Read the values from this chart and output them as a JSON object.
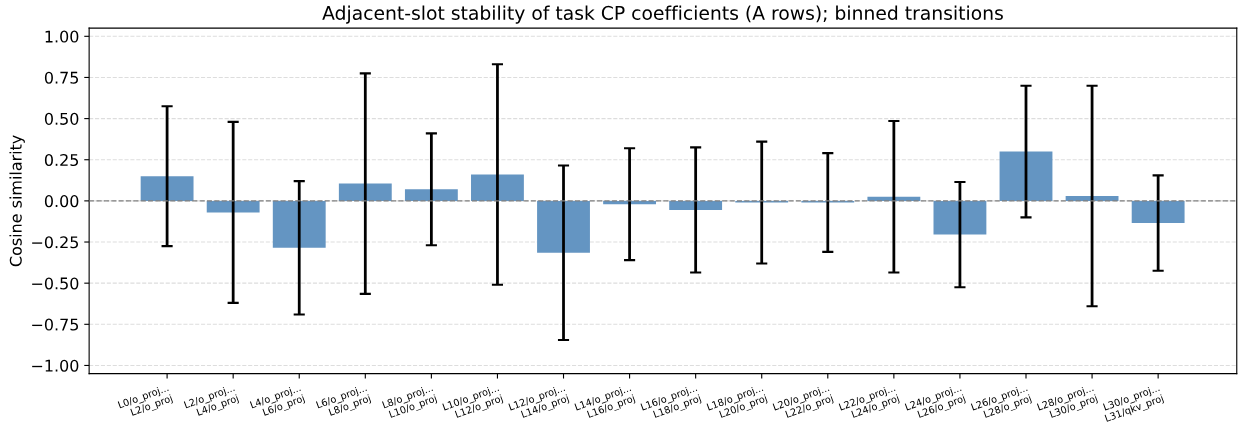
{
  "chart_data": {
    "type": "bar",
    "title": "Adjacent-slot stability of task CP coefficients (A rows); binned transitions",
    "ylabel": "Cosine similarity",
    "categories": [
      "L0/o_proj...\nL2/o_proj",
      "L2/o_proj...\nL4/o_proj",
      "L4/o_proj...\nL6/o_proj",
      "L6/o_proj...\nL8/o_proj",
      "L8/o_proj...\nL10/o_proj",
      "L10/o_proj...\nL12/o_proj",
      "L12/o_proj...\nL14/o_proj",
      "L14/o_proj...\nL16/o_proj",
      "L16/o_proj...\nL18/o_proj",
      "L18/o_proj...\nL20/o_proj",
      "L20/o_proj...\nL22/o_proj",
      "L22/o_proj...\nL24/o_proj",
      "L24/o_proj...\nL26/o_proj",
      "L26/o_proj...\nL28/o_proj",
      "L28/o_proj...\nL30/o_proj",
      "L30/o_proj...\nL31/qkv_proj"
    ],
    "values": [
      0.15,
      -0.07,
      -0.285,
      0.105,
      0.07,
      0.16,
      -0.315,
      -0.02,
      -0.055,
      -0.01,
      -0.01,
      0.025,
      -0.205,
      0.3,
      0.03,
      -0.135
    ],
    "errors": [
      0.425,
      0.55,
      0.405,
      0.67,
      0.34,
      0.67,
      0.53,
      0.34,
      0.38,
      0.37,
      0.3,
      0.46,
      0.32,
      0.4,
      0.67,
      0.29
    ],
    "color": "#6495c2",
    "ylim": [
      -1.05,
      1.05
    ],
    "yticks": [
      {
        "value": -1.0,
        "label": "−1.00"
      },
      {
        "value": -0.75,
        "label": "−0.75"
      },
      {
        "value": -0.5,
        "label": "−0.50"
      },
      {
        "value": -0.25,
        "label": "−0.25"
      },
      {
        "value": 0.0,
        "label": "0.00"
      },
      {
        "value": 0.25,
        "label": "0.25"
      },
      {
        "value": 0.5,
        "label": "0.50"
      },
      {
        "value": 0.75,
        "label": "0.75"
      },
      {
        "value": 1.0,
        "label": "1.00"
      }
    ],
    "ref_lines": [
      {
        "axis": "y",
        "value": 0,
        "color": "#808080",
        "line_style": "dashed"
      }
    ],
    "grid": "y"
  }
}
